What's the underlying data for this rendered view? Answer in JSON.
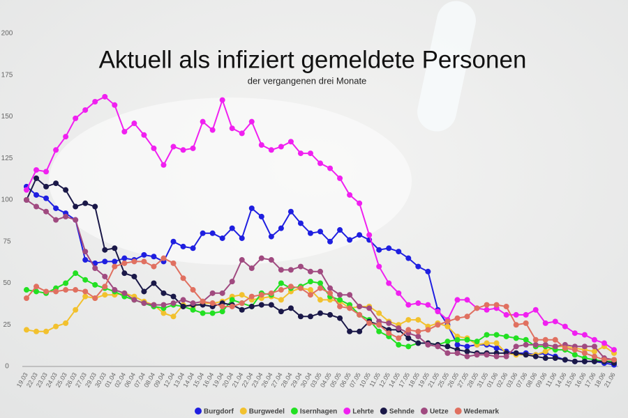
{
  "chart_data": {
    "type": "line",
    "title": "Aktuell als infiziert gemeldete Personen",
    "subtitle": "der vergangenen drei Monate",
    "categories": [
      "19.03",
      "22.03",
      "23.03",
      "24.03",
      "25.03",
      "26.03",
      "27.03",
      "29.03",
      "30.03",
      "01.04",
      "02.04",
      "06.04",
      "07.04",
      "08.04",
      "09.04",
      "12.04",
      "13.04",
      "14.04",
      "15.04",
      "16.04",
      "19.04",
      "20.04",
      "21.04",
      "22.04",
      "23.04",
      "26.04",
      "27.04",
      "28.04",
      "29.04",
      "30.04",
      "03.05",
      "04.05",
      "05.05",
      "06.05",
      "07.05",
      "10.05",
      "11.05",
      "12.05",
      "14.05",
      "17.05",
      "18.05",
      "19.05",
      "21.05",
      "25.05",
      "26.05",
      "27.05",
      "28.05",
      "31.05",
      "01.06",
      "02.06",
      "03.06",
      "07.06",
      "08.06",
      "09.06",
      "11.06",
      "14.06",
      "15.06",
      "16.06",
      "17.06",
      "18.06",
      "21.06"
    ],
    "ylim": [
      0,
      200
    ],
    "yticks": [
      0,
      25,
      50,
      75,
      100,
      125,
      150,
      175,
      200
    ],
    "grid": false,
    "series": [
      {
        "name": "Burgdorf",
        "color": "#1f1fe0",
        "values": [
          108,
          103,
          101,
          95,
          92,
          88,
          64,
          62,
          63,
          63,
          65,
          64,
          67,
          66,
          63,
          75,
          72,
          71,
          80,
          80,
          77,
          83,
          77,
          95,
          90,
          78,
          83,
          93,
          86,
          80,
          81,
          75,
          82,
          76,
          79,
          76,
          70,
          71,
          69,
          65,
          60,
          57,
          34,
          25,
          13,
          12,
          13,
          13,
          11,
          9,
          8,
          8,
          7,
          8,
          6,
          4,
          3,
          3,
          3,
          2,
          1
        ]
      },
      {
        "name": "Burgwedel",
        "color": "#f2c12e",
        "values": [
          22,
          21,
          21,
          24,
          26,
          34,
          42,
          41,
          43,
          43,
          44,
          42,
          39,
          37,
          32,
          30,
          37,
          36,
          38,
          38,
          39,
          42,
          43,
          40,
          41,
          42,
          40,
          45,
          47,
          46,
          40,
          40,
          39,
          35,
          36,
          36,
          32,
          27,
          25,
          28,
          28,
          24,
          26,
          24,
          18,
          17,
          13,
          14,
          14,
          8,
          7,
          7,
          7,
          9,
          12,
          12,
          11,
          10,
          9,
          12,
          8
        ]
      },
      {
        "name": "Isernhagen",
        "color": "#22e022",
        "values": [
          46,
          45,
          44,
          47,
          50,
          56,
          52,
          49,
          47,
          45,
          42,
          40,
          38,
          36,
          35,
          37,
          36,
          34,
          32,
          32,
          33,
          40,
          38,
          36,
          44,
          43,
          50,
          47,
          48,
          51,
          50,
          42,
          40,
          37,
          31,
          28,
          21,
          18,
          13,
          12,
          14,
          14,
          13,
          15,
          16,
          16,
          15,
          19,
          19,
          18,
          17,
          16,
          12,
          12,
          10,
          10,
          7,
          5,
          4,
          3,
          3
        ]
      },
      {
        "name": "Lehrte",
        "color": "#f020f0",
        "values": [
          106,
          118,
          117,
          130,
          138,
          149,
          154,
          159,
          162,
          157,
          141,
          146,
          139,
          131,
          121,
          132,
          130,
          131,
          147,
          142,
          160,
          143,
          140,
          147,
          133,
          130,
          132,
          135,
          128,
          128,
          122,
          119,
          113,
          103,
          98,
          79,
          60,
          50,
          44,
          37,
          38,
          37,
          33,
          28,
          40,
          40,
          35,
          34,
          35,
          31,
          31,
          31,
          34,
          26,
          27,
          24,
          20,
          19,
          16,
          14,
          10
        ]
      },
      {
        "name": "Sehnde",
        "color": "#1a1848",
        "values": [
          100,
          113,
          108,
          110,
          106,
          96,
          98,
          96,
          70,
          71,
          56,
          54,
          45,
          50,
          44,
          42,
          36,
          37,
          37,
          36,
          38,
          37,
          34,
          36,
          37,
          37,
          33,
          35,
          30,
          30,
          32,
          31,
          29,
          21,
          21,
          27,
          25,
          22,
          22,
          17,
          14,
          14,
          13,
          12,
          10,
          9,
          8,
          8,
          8,
          8,
          8,
          7,
          6,
          5,
          5,
          4,
          3,
          3,
          3,
          3,
          2
        ]
      },
      {
        "name": "Uetze",
        "color": "#a04a80",
        "values": [
          100,
          96,
          93,
          88,
          90,
          88,
          69,
          59,
          54,
          46,
          44,
          40,
          38,
          37,
          37,
          38,
          40,
          38,
          39,
          44,
          44,
          51,
          64,
          59,
          65,
          64,
          58,
          58,
          60,
          57,
          57,
          47,
          43,
          43,
          36,
          35,
          27,
          26,
          23,
          20,
          18,
          13,
          12,
          8,
          8,
          6,
          7,
          7,
          6,
          6,
          12,
          13,
          13,
          13,
          12,
          13,
          12,
          12,
          12,
          5,
          4
        ]
      },
      {
        "name": "Wedemark",
        "color": "#e07060",
        "values": [
          41,
          48,
          45,
          45,
          46,
          46,
          45,
          41,
          48,
          60,
          62,
          63,
          63,
          60,
          65,
          62,
          53,
          46,
          39,
          38,
          36,
          36,
          38,
          42,
          43,
          44,
          46,
          48,
          47,
          43,
          47,
          44,
          36,
          35,
          31,
          26,
          25,
          20,
          17,
          22,
          21,
          22,
          25,
          27,
          29,
          30,
          35,
          37,
          37,
          36,
          25,
          26,
          16,
          16,
          16,
          11,
          10,
          8,
          6,
          4,
          4
        ]
      }
    ]
  }
}
